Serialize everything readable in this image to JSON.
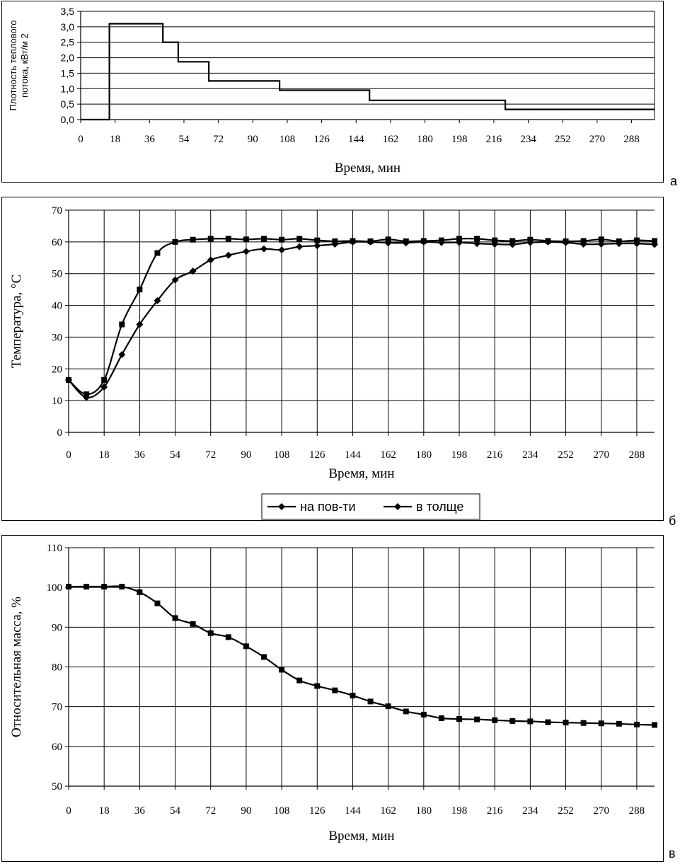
{
  "panel_letters": {
    "a": "а",
    "b": "б",
    "c": "в"
  },
  "chart_data": [
    {
      "id": "a",
      "type": "line",
      "step": true,
      "title": "",
      "xlabel": "Время, мин",
      "ylabel_lines": [
        "Плотность теплового",
        "потока, кВт/м 2"
      ],
      "xlim": [
        0,
        300
      ],
      "ylim": [
        0,
        3.5
      ],
      "xticks": [
        0,
        18,
        36,
        54,
        72,
        90,
        108,
        126,
        144,
        162,
        180,
        198,
        216,
        234,
        252,
        270,
        288
      ],
      "yticks": [
        0,
        0.5,
        1.0,
        1.5,
        2.0,
        2.5,
        3.0,
        3.5
      ],
      "ytick_labels": [
        "0,0",
        "0,5",
        "1,0",
        "1,5",
        "2,0",
        "2,5",
        "3,0",
        "3,5"
      ],
      "grid": "horizontal",
      "series": [
        {
          "x": [
            0,
            15,
            15,
            43,
            43,
            51,
            51,
            67,
            67,
            104,
            104,
            151,
            151,
            222,
            222,
            300
          ],
          "y": [
            0,
            0,
            3.1,
            3.1,
            2.5,
            2.5,
            1.87,
            1.87,
            1.25,
            1.25,
            0.95,
            0.95,
            0.62,
            0.62,
            0.33,
            0.33
          ]
        }
      ]
    },
    {
      "id": "b",
      "type": "line",
      "title": "",
      "xlabel": "Время, мин",
      "ylabel": "Температура, °С",
      "xlim": [
        0,
        297
      ],
      "ylim": [
        0,
        70
      ],
      "xticks": [
        0,
        18,
        36,
        54,
        72,
        90,
        108,
        126,
        144,
        162,
        180,
        198,
        216,
        234,
        252,
        270,
        288
      ],
      "yticks": [
        0,
        10,
        20,
        30,
        40,
        50,
        60,
        70
      ],
      "grid": "both",
      "legend": "bottom",
      "series": [
        {
          "name": "на пов-ти",
          "marker": "square",
          "x": [
            0,
            9,
            18,
            27,
            36,
            45,
            54,
            63,
            72,
            81,
            90,
            99,
            108,
            117,
            126,
            135,
            144,
            153,
            162,
            171,
            180,
            189,
            198,
            207,
            216,
            225,
            234,
            243,
            252,
            261,
            270,
            279,
            288,
            297
          ],
          "y": [
            16.5,
            12,
            16.5,
            34,
            45,
            56.5,
            60,
            60.7,
            61,
            61,
            60.8,
            61,
            60.7,
            61,
            60.5,
            60.2,
            60.3,
            60.2,
            60.8,
            60.2,
            60.3,
            60.5,
            61,
            61,
            60.5,
            60.3,
            60.7,
            60.3,
            60.2,
            60.3,
            60.8,
            60.2,
            60.5,
            60.3
          ]
        },
        {
          "name": "в толще",
          "marker": "diamond",
          "x": [
            0,
            9,
            18,
            27,
            36,
            45,
            54,
            63,
            72,
            81,
            90,
            99,
            108,
            117,
            126,
            135,
            144,
            153,
            162,
            171,
            180,
            189,
            198,
            207,
            216,
            225,
            234,
            243,
            252,
            261,
            270,
            279,
            288,
            297
          ],
          "y": [
            16.5,
            11,
            14.3,
            24.5,
            34,
            41.5,
            48,
            50.8,
            54.3,
            55.8,
            57,
            57.8,
            57.5,
            58.5,
            58.8,
            59.3,
            60,
            60,
            59.7,
            59.7,
            60,
            59.8,
            59.8,
            59.5,
            59.3,
            59.2,
            59.8,
            60,
            59.8,
            59.3,
            59.3,
            59.5,
            59.5,
            59.2
          ]
        }
      ]
    },
    {
      "id": "c",
      "type": "line",
      "title": "",
      "xlabel": "Время, мин",
      "ylabel": "Относительная масса, %",
      "xlim": [
        0,
        297
      ],
      "ylim": [
        50,
        110
      ],
      "xticks": [
        0,
        18,
        36,
        54,
        72,
        90,
        108,
        126,
        144,
        162,
        180,
        198,
        216,
        234,
        252,
        270,
        288
      ],
      "yticks": [
        50,
        60,
        70,
        80,
        90,
        100,
        110
      ],
      "grid": "both",
      "series": [
        {
          "marker": "square",
          "x": [
            0,
            9,
            18,
            27,
            36,
            45,
            54,
            63,
            72,
            81,
            90,
            99,
            108,
            117,
            126,
            135,
            144,
            153,
            162,
            171,
            180,
            189,
            198,
            207,
            216,
            225,
            234,
            243,
            252,
            261,
            270,
            279,
            288,
            297
          ],
          "y": [
            100.2,
            100.2,
            100.2,
            100.2,
            98.8,
            96,
            92.3,
            90.8,
            88.5,
            87.5,
            85.2,
            82.5,
            79.3,
            76.6,
            75.2,
            74.1,
            72.8,
            71.3,
            70.1,
            68.8,
            68,
            67.1,
            66.9,
            66.8,
            66.6,
            66.4,
            66.3,
            66.1,
            66,
            65.9,
            65.8,
            65.7,
            65.5,
            65.4
          ]
        }
      ]
    }
  ]
}
